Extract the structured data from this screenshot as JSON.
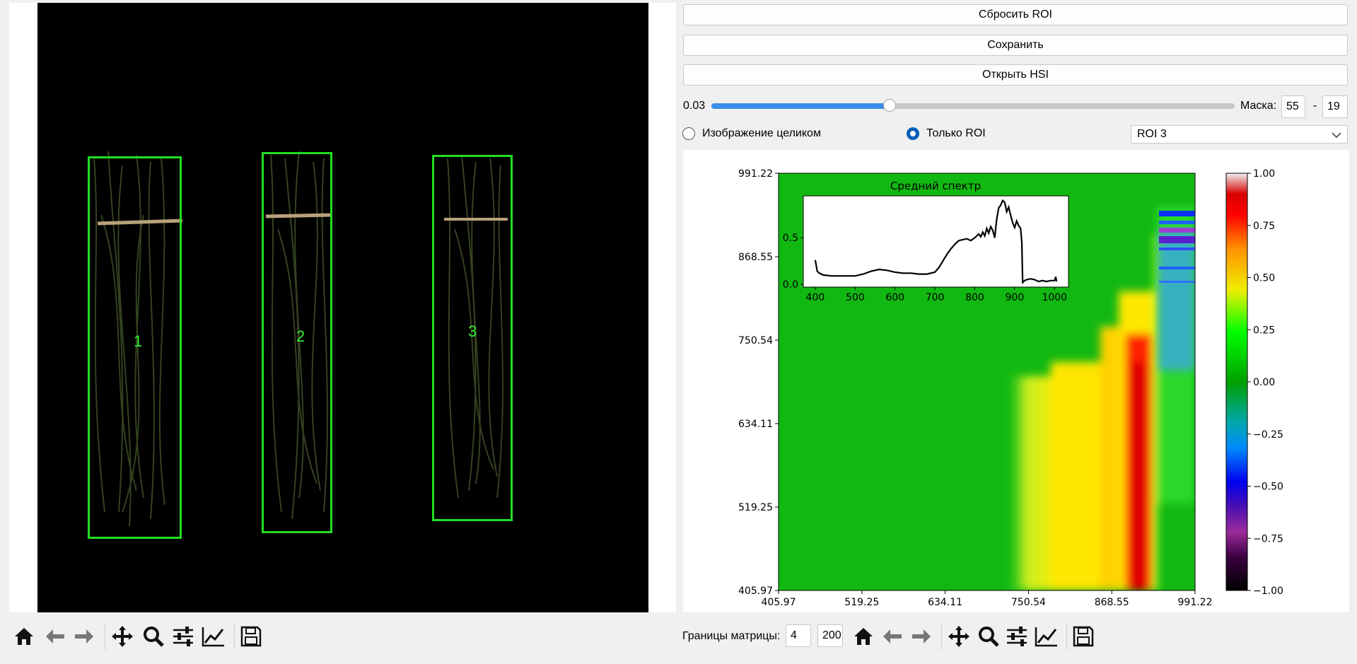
{
  "rois": [
    {
      "label": "1"
    },
    {
      "label": "2"
    },
    {
      "label": "3"
    }
  ],
  "controls": {
    "reset_roi": "Сбросить ROI",
    "save": "Сохранить",
    "open_hsi": "Открыть HSI",
    "threshold_value": "0.03",
    "threshold_fraction": 0.34,
    "mask_label": "Маска:",
    "mask_from": "55",
    "mask_dash": "-",
    "mask_to": "19",
    "radio_whole": "Изображение целиком",
    "radio_roi": "Только ROI",
    "roi_select": "ROI 3"
  },
  "bottom": {
    "matrix_label": "Границы матрицы:",
    "matrix_from": "4",
    "matrix_to": "200"
  },
  "icons": [
    "home-icon",
    "back-arrow-icon",
    "forward-arrow-icon",
    "pan-icon",
    "zoom-icon",
    "configure-icon",
    "edit-axes-icon",
    "save-icon"
  ],
  "chart_data": [
    {
      "type": "heatmap",
      "x_ticks": [
        "405.97",
        "519.25",
        "634.11",
        "750.54",
        "868.55",
        "991.22"
      ],
      "y_ticks": [
        "991.22",
        "868.55",
        "750.54",
        "634.11",
        "519.25",
        "405.97"
      ],
      "xlim": [
        405.97,
        991.22
      ],
      "ylim": [
        405.97,
        991.22
      ],
      "colorbar_ticks": [
        "1.00",
        "0.75",
        "0.50",
        "0.25",
        "0.00",
        "−0.25",
        "−0.50",
        "−0.75",
        "−1.00"
      ],
      "colorbar_range": [
        -1,
        1
      ]
    },
    {
      "type": "line",
      "title": "Средний спектр",
      "x_ticks": [
        "400",
        "500",
        "600",
        "700",
        "800",
        "900",
        "1000"
      ],
      "y_ticks": [
        "0.5",
        "0.0"
      ],
      "xlim": [
        370,
        1035
      ],
      "ylim": [
        -0.03,
        0.95
      ],
      "x": [
        400,
        405,
        410,
        420,
        440,
        460,
        480,
        500,
        520,
        540,
        560,
        580,
        600,
        620,
        640,
        660,
        680,
        700,
        710,
        720,
        730,
        740,
        750,
        760,
        770,
        780,
        790,
        800,
        810,
        815,
        820,
        825,
        830,
        835,
        840,
        845,
        850,
        855,
        860,
        865,
        870,
        875,
        880,
        885,
        890,
        895,
        900,
        905,
        910,
        915,
        918,
        920,
        925,
        930,
        940,
        950,
        960,
        970,
        980,
        990,
        1000,
        1003,
        1005
      ],
      "y": [
        0.26,
        0.14,
        0.12,
        0.1,
        0.09,
        0.09,
        0.09,
        0.09,
        0.11,
        0.14,
        0.16,
        0.15,
        0.13,
        0.12,
        0.12,
        0.11,
        0.11,
        0.13,
        0.18,
        0.25,
        0.32,
        0.38,
        0.43,
        0.47,
        0.48,
        0.49,
        0.47,
        0.5,
        0.54,
        0.51,
        0.56,
        0.52,
        0.6,
        0.55,
        0.62,
        0.58,
        0.5,
        0.7,
        0.82,
        0.85,
        0.9,
        0.88,
        0.78,
        0.83,
        0.74,
        0.66,
        0.61,
        0.68,
        0.63,
        0.6,
        0.45,
        0.02,
        0.04,
        0.05,
        0.06,
        0.05,
        0.03,
        0.04,
        0.03,
        0.04,
        0.04,
        0.08,
        0.03
      ]
    }
  ]
}
